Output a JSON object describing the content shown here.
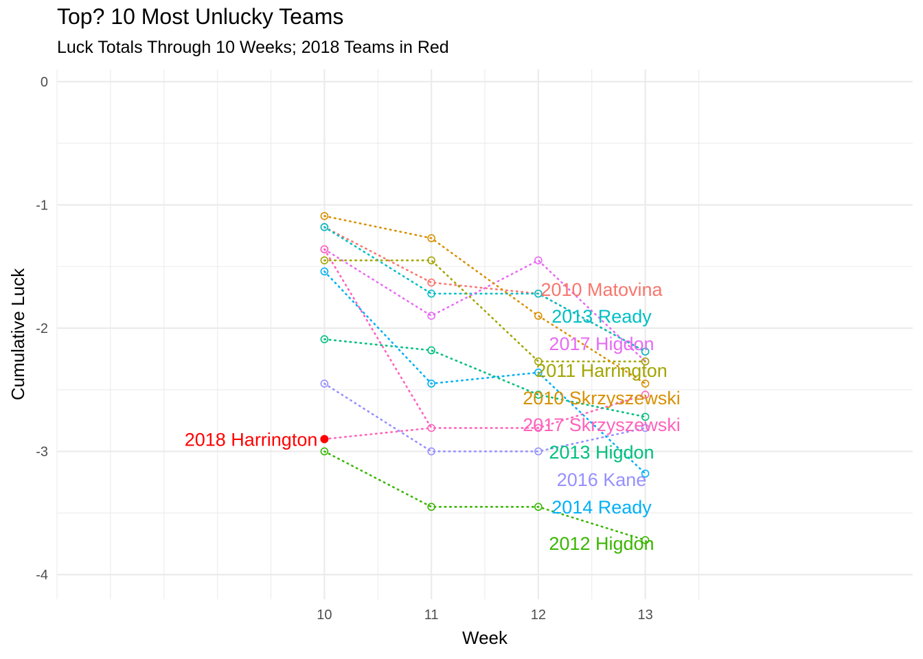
{
  "chart_data": {
    "type": "line",
    "title": "Top? 10 Most Unlucky Teams",
    "subtitle": "Luck Totals Through 10 Weeks; 2018 Teams in Red",
    "xlabel": "Week",
    "ylabel": "Cumulative Luck",
    "x": [
      10,
      11,
      12,
      13
    ],
    "x_ticks": [
      "10",
      "11",
      "12",
      "13"
    ],
    "y_ticks": [
      "0",
      "-1",
      "-2",
      "-3",
      "-4"
    ],
    "xlim": [
      7.5,
      15.5
    ],
    "ylim": [
      -4.2,
      0.1
    ],
    "grid": true,
    "legend": "none",
    "series": [
      {
        "name": "2010 Matovina",
        "color": "#F8766D",
        "values": [
          -1.18,
          -1.63,
          -1.72,
          -2.19
        ]
      },
      {
        "name": "2013 Ready",
        "color": "#00BFC4",
        "values": [
          -1.18,
          -1.72,
          -1.72,
          -2.19
        ]
      },
      {
        "name": "2017 Higdon",
        "color": "#E76BF3",
        "values": [
          -1.36,
          -1.9,
          -1.45,
          -2.27
        ]
      },
      {
        "name": "2011 Harrington",
        "color": "#A3A500",
        "values": [
          -1.45,
          -1.45,
          -2.27,
          -2.27
        ]
      },
      {
        "name": "2010 Skrzyszewski",
        "color": "#D89000",
        "values": [
          -1.09,
          -1.27,
          -1.9,
          -2.45
        ]
      },
      {
        "name": "2017 Skrzyszewski",
        "color": "#FF62BC",
        "values": [
          -1.36,
          -2.81,
          -2.81,
          -2.54
        ]
      },
      {
        "name": "2013 Higdon",
        "color": "#00BF7D",
        "values": [
          -2.09,
          -2.18,
          -2.54,
          -2.72
        ]
      },
      {
        "name": "2016 Kane",
        "color": "#9590FF",
        "values": [
          -2.45,
          -3.0,
          -3.0,
          -2.81
        ]
      },
      {
        "name": "2014 Ready",
        "color": "#00B0F6",
        "values": [
          -1.54,
          -2.45,
          -2.36,
          -3.18
        ]
      },
      {
        "name": "2012 Higdon",
        "color": "#39B600",
        "values": [
          -3.0,
          -3.45,
          -3.45,
          -3.72
        ]
      }
    ],
    "highlight": {
      "name": "2018 Harrington",
      "color": "#FF0000",
      "x": 10,
      "value": -2.9
    }
  }
}
